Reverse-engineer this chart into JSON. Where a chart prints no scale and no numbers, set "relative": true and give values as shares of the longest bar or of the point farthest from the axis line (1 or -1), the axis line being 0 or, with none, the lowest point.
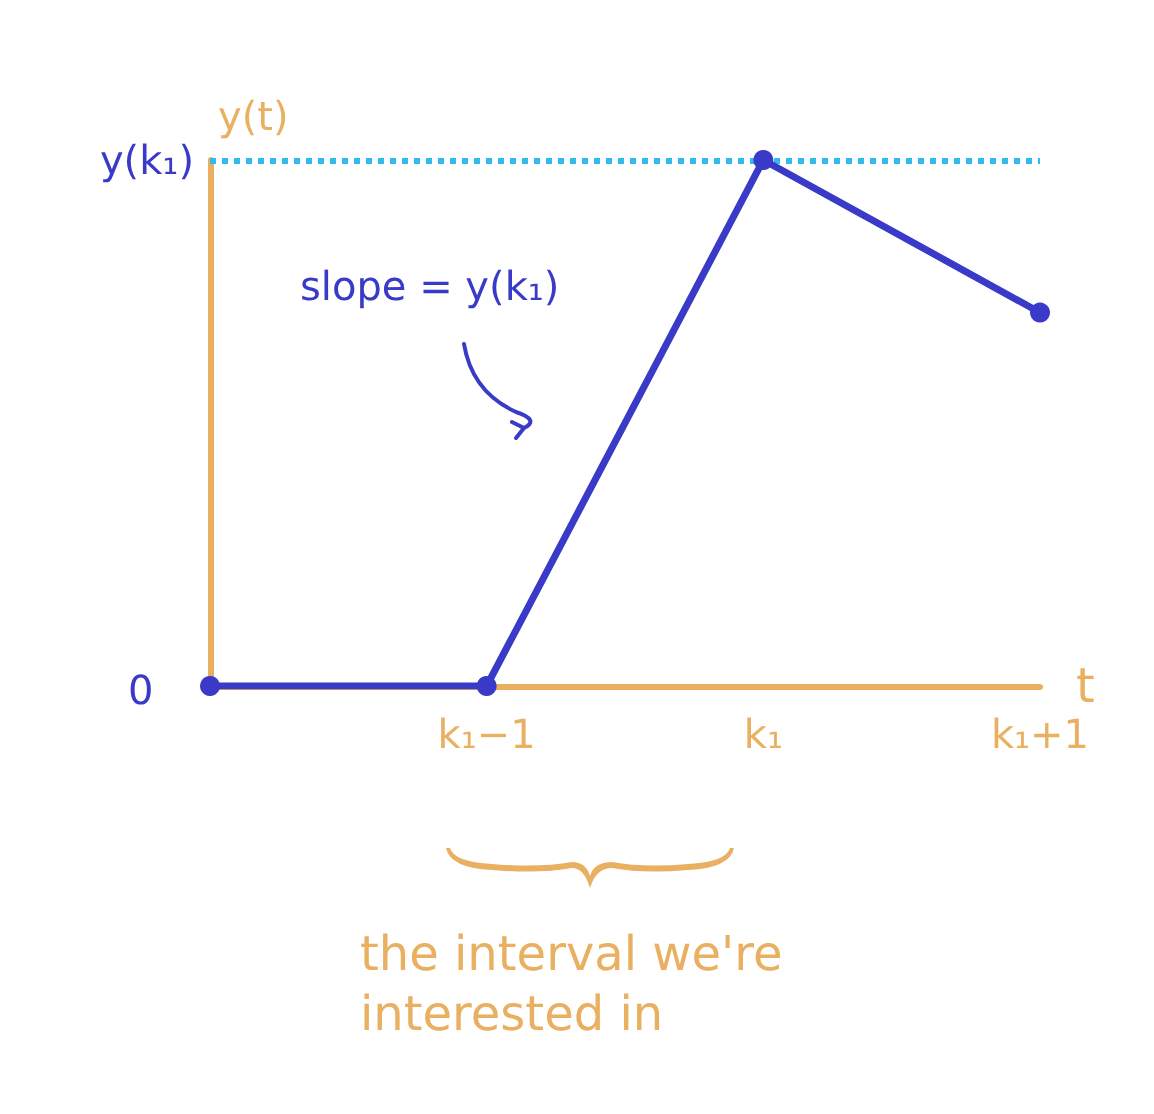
{
  "chart_data": {
    "type": "line",
    "relative": true,
    "xlabel": "t",
    "ylabel": "y(t)",
    "categories": [
      null,
      "k₁−1",
      "k₁",
      "k₁+1"
    ],
    "series": [
      {
        "color": "#3a3ac8",
        "values": [
          0,
          0,
          1,
          0.71
        ]
      }
    ],
    "marker": "circle",
    "line_style": "solid",
    "ref_lines": [
      {
        "axis": "y",
        "value": 1,
        "label": "y(k₁)",
        "color": "#33bbee",
        "line_style": "dotted"
      }
    ],
    "annotations": [
      "0",
      "slope = y(k₁)",
      "the interval we're interested in"
    ]
  }
}
